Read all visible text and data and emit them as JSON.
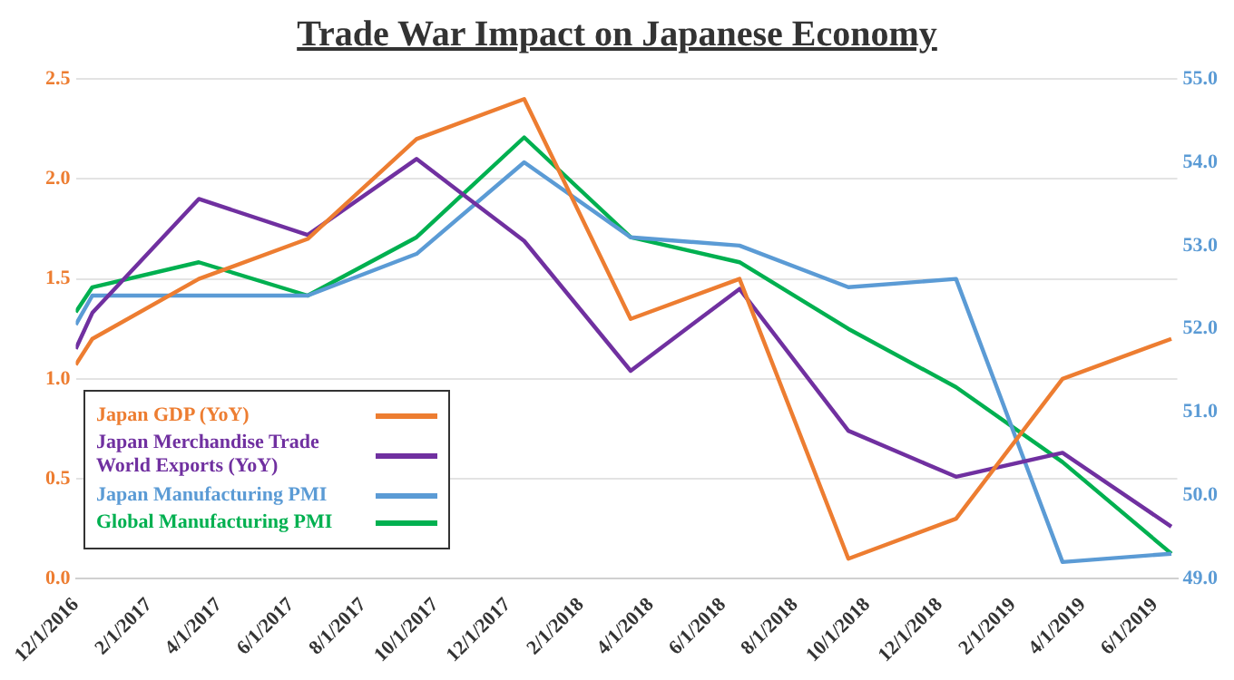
{
  "chart_data": {
    "type": "line",
    "title": "Trade War Impact on Japanese Economy",
    "x": [
      "2016-12-01",
      "2016-12-15",
      "2017-03-15",
      "2017-06-15",
      "2017-09-15",
      "2017-12-15",
      "2018-03-15",
      "2018-06-15",
      "2018-09-15",
      "2018-12-15",
      "2019-03-15",
      "2019-06-15"
    ],
    "series": [
      {
        "name": "Japan GDP (YoY)",
        "color": "#ed7d31",
        "values": [
          1.07,
          1.2,
          1.5,
          1.7,
          2.2,
          2.4,
          1.3,
          1.5,
          0.1,
          0.3,
          1.0,
          1.2
        ]
      },
      {
        "name": "Japan Merchandise Trade World Exports (YoY)",
        "color": "#7030a0",
        "values": [
          1.15,
          1.33,
          1.9,
          1.72,
          2.1,
          1.69,
          1.04,
          1.45,
          0.74,
          0.51,
          0.63,
          0.26
        ]
      },
      {
        "name": "Japan Manufacturing PMI",
        "color": "#5b9bd5",
        "axis": "y2",
        "values": [
          52.05,
          52.4,
          52.4,
          52.4,
          52.9,
          54.0,
          53.1,
          53.0,
          52.5,
          52.6,
          49.2,
          49.3
        ]
      },
      {
        "name": "Global Manufacturing PMI",
        "color": "#00b050",
        "axis": "y2",
        "values": [
          52.2,
          52.5,
          52.8,
          52.4,
          53.1,
          54.3,
          53.1,
          52.8,
          52.0,
          51.3,
          50.4,
          49.3
        ]
      }
    ],
    "xlim": [
      "2016-12-01",
      "2019-06-20"
    ],
    "xticks": [
      {
        "value": "2016-12-01",
        "label": "12/1/2016"
      },
      {
        "value": "2017-02-01",
        "label": "2/1/2017"
      },
      {
        "value": "2017-04-01",
        "label": "4/1/2017"
      },
      {
        "value": "2017-06-01",
        "label": "6/1/2017"
      },
      {
        "value": "2017-08-01",
        "label": "8/1/2017"
      },
      {
        "value": "2017-10-01",
        "label": "10/1/2017"
      },
      {
        "value": "2017-12-01",
        "label": "12/1/2017"
      },
      {
        "value": "2018-02-01",
        "label": "2/1/2018"
      },
      {
        "value": "2018-04-01",
        "label": "4/1/2018"
      },
      {
        "value": "2018-06-01",
        "label": "6/1/2018"
      },
      {
        "value": "2018-08-01",
        "label": "8/1/2018"
      },
      {
        "value": "2018-10-01",
        "label": "10/1/2018"
      },
      {
        "value": "2018-12-01",
        "label": "12/1/2018"
      },
      {
        "value": "2019-02-01",
        "label": "2/1/2019"
      },
      {
        "value": "2019-04-01",
        "label": "4/1/2019"
      },
      {
        "value": "2019-06-01",
        "label": "6/1/2019"
      }
    ],
    "ylim": [
      0,
      2.5
    ],
    "yticks": [
      {
        "value": 0,
        "label": "0.0"
      },
      {
        "value": 0.5,
        "label": "0.5"
      },
      {
        "value": 1,
        "label": "1.0"
      },
      {
        "value": 1.5,
        "label": "1.5"
      },
      {
        "value": 2,
        "label": "2.0"
      },
      {
        "value": 2.5,
        "label": "2.5"
      }
    ],
    "y2lim": [
      49,
      55
    ],
    "y2ticks": [
      {
        "value": 49,
        "label": "49.0"
      },
      {
        "value": 50,
        "label": "50.0"
      },
      {
        "value": 51,
        "label": "51.0"
      },
      {
        "value": 52,
        "label": "52.0"
      },
      {
        "value": 53,
        "label": "53.0"
      },
      {
        "value": 54,
        "label": "54.0"
      },
      {
        "value": 55,
        "label": "55.0"
      }
    ],
    "grid": "y",
    "legend": "bottom left",
    "marker": "none",
    "line_style": "solid"
  }
}
